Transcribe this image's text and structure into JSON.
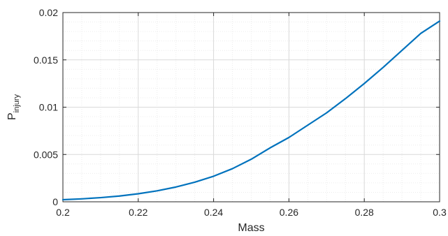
{
  "chart_data": {
    "type": "line",
    "title": "",
    "xlabel": "Mass",
    "ylabel": "P",
    "ylabel_subscript": "injury",
    "xlim": [
      0.2,
      0.3
    ],
    "ylim": [
      0,
      0.02
    ],
    "xticks": [
      0.2,
      0.22,
      0.24,
      0.26,
      0.28,
      0.3
    ],
    "xtick_labels": [
      "0.2",
      "0.22",
      "0.24",
      "0.26",
      "0.28",
      "0.3"
    ],
    "yticks": [
      0,
      0.005,
      0.01,
      0.015,
      0.02
    ],
    "ytick_labels": [
      "0",
      "0.005",
      "0.01",
      "0.015",
      "0.02"
    ],
    "grid": true,
    "series": [
      {
        "color": "#0072BD",
        "x": [
          0.2,
          0.205,
          0.21,
          0.215,
          0.22,
          0.225,
          0.23,
          0.235,
          0.24,
          0.245,
          0.25,
          0.255,
          0.26,
          0.265,
          0.27,
          0.275,
          0.28,
          0.285,
          0.29,
          0.295,
          0.3
        ],
        "y": [
          0.00022,
          0.00031,
          0.00044,
          0.00061,
          0.00085,
          0.00116,
          0.00156,
          0.00207,
          0.0027,
          0.0035,
          0.0045,
          0.0057,
          0.0068,
          0.0081,
          0.0094,
          0.0109,
          0.0125,
          0.0142,
          0.016,
          0.0178,
          0.0191
        ]
      }
    ]
  }
}
